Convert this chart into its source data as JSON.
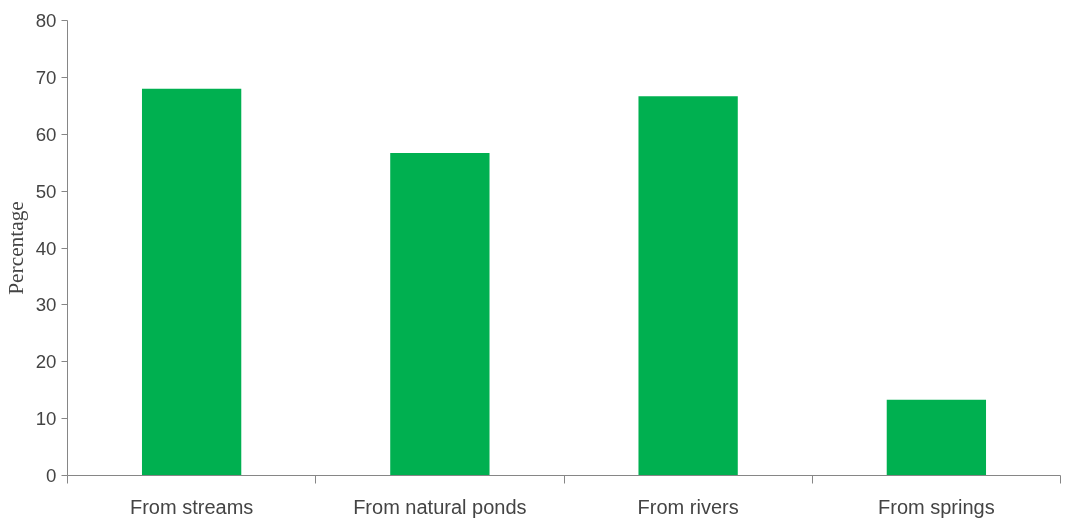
{
  "chart_data": {
    "type": "bar",
    "ylabel": "Percentage",
    "categories": [
      "From streams",
      "From natural ponds",
      "From rivers",
      "From springs"
    ],
    "values": [
      68,
      56.7,
      66.7,
      13.3
    ],
    "color": "#00b050",
    "ylim": [
      0,
      80
    ],
    "yticks": [
      0,
      10,
      20,
      30,
      40,
      50,
      60,
      70,
      80
    ],
    "grid": false,
    "legend": false
  }
}
